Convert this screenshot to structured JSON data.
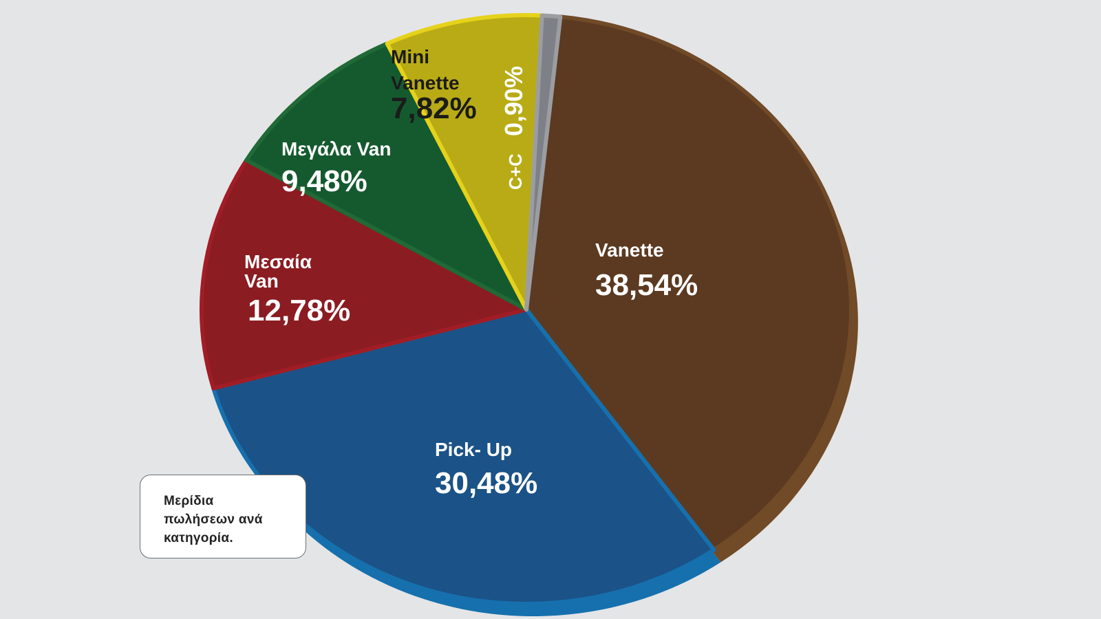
{
  "chart_data": {
    "type": "pie",
    "title": "",
    "categories": [
      "Vanette",
      "Pick- Up",
      "Μεσαία Van",
      "Μεγάλα Van",
      "Mini Vanette",
      "C+C"
    ],
    "values": [
      38.54,
      30.48,
      12.78,
      9.48,
      7.82,
      0.9
    ],
    "value_labels": [
      "38,54%",
      "30,48%",
      "12,78%",
      "9,48%",
      "7,82%",
      "0,90%"
    ],
    "label_lines": [
      [
        "Vanette"
      ],
      [
        "Pick- Up"
      ],
      [
        "Μεσαία",
        "Van"
      ],
      [
        "Μεγάλα Van"
      ],
      [
        "Mini",
        "Vanette"
      ],
      [
        "C+C"
      ]
    ],
    "colors": [
      "#5b3a21",
      "#1b5287",
      "#8b1c22",
      "#155a2f",
      "#b8ab15",
      "#7d8086"
    ],
    "side_colors": [
      "#714a28",
      "#1670ad",
      "#a11d25",
      "#1f6a36",
      "#e6d21a",
      "#9b9da1"
    ],
    "legend": "none"
  },
  "note": {
    "lines": [
      "Μερίδια",
      "πωλήσεων ανά",
      "κατηγορία."
    ]
  }
}
